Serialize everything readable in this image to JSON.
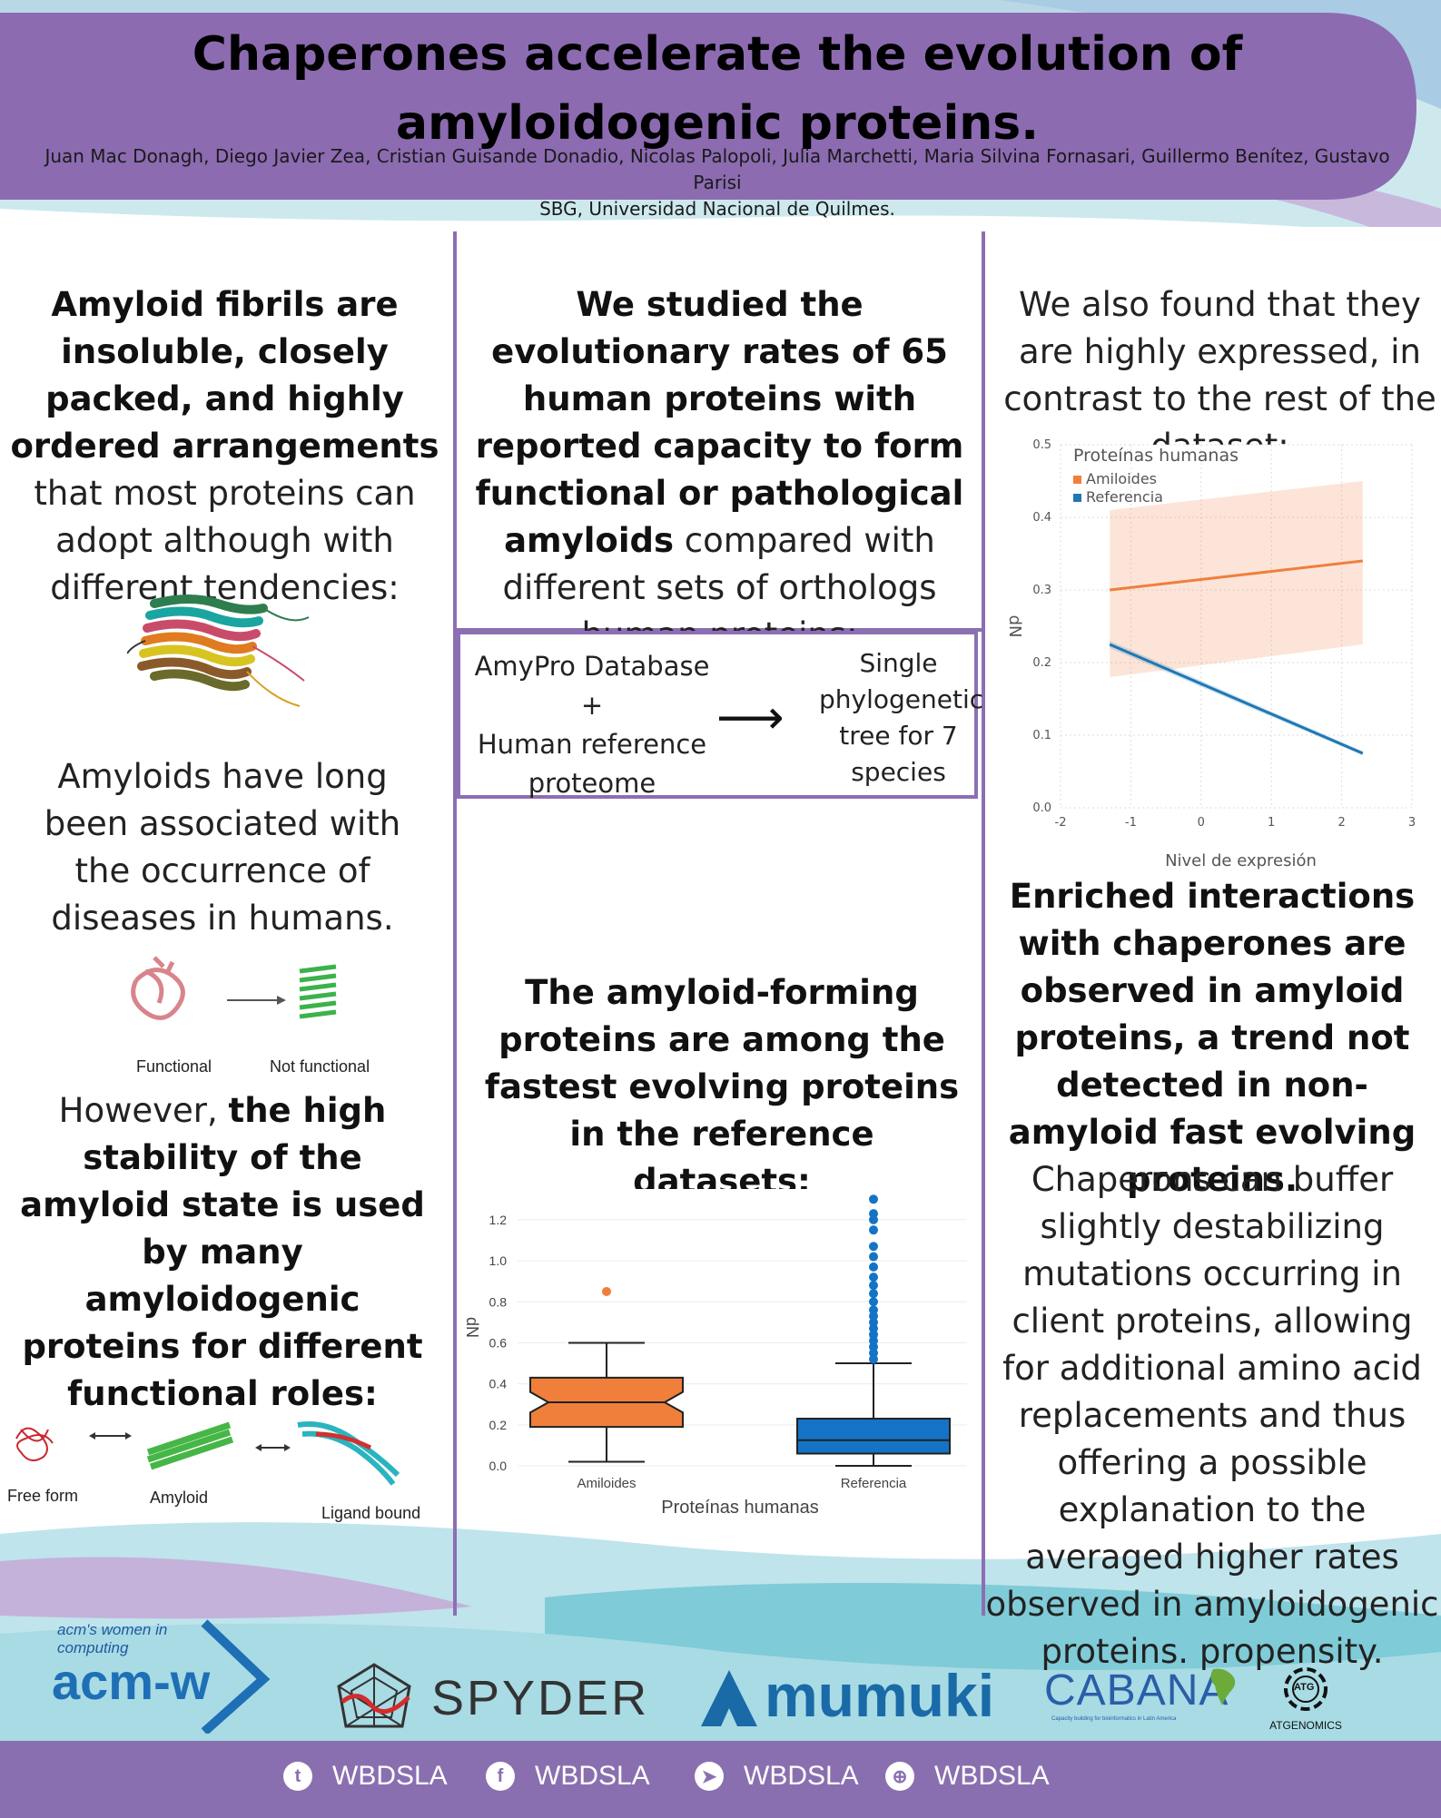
{
  "header": {
    "title": "Chaperones accelerate the evolution of amyloidogenic proteins.",
    "authors": "Juan Mac Donagh, Diego Javier Zea, Cristian Guisande Donadio, Nicolas Palopoli, Julia Marchetti, Maria Silvina Fornasari, Guillermo Benítez, Gustavo Parisi",
    "affiliation": "SBG, Universidad Nacional de Quilmes."
  },
  "left": {
    "p1_bold_a": "Amyloid fibrils are insoluble, closely packed, and highly ordered arrangements",
    "p1_rest": " that most proteins can adopt although with different tendencies:",
    "p2": "Amyloids have long been associated with the occurrence of diseases in humans.",
    "fig2_cap_functional": "Functional",
    "fig2_cap_notfunctional": "Not functional",
    "p3_pre": "However, ",
    "p3_bold": "the high stability of the amyloid state is used by many amyloidogenic proteins for different functional roles:",
    "fig3_cap_free": "Free form",
    "fig3_cap_amyloid": "Amyloid",
    "fig3_cap_ligand": "Ligand bound"
  },
  "middle": {
    "p1_bold": "We studied the evolutionary rates of 65 human proteins with reported capacity to form functional or pathological amyloids",
    "p1_rest": " compared with different sets of orthologs human proteins:",
    "flow_left_1": "AmyPro Database",
    "flow_left_plus": "+",
    "flow_left_2": "Human reference proteome",
    "flow_arrow": "⟶",
    "flow_right": "Single phylogenetic tree for 7 species",
    "p2_bold": "The amyloid-forming proteins are among the fastest evolving proteins in the reference datasets:"
  },
  "right": {
    "p1": "We also found that they are highly expressed, in contrast to the rest of the dataset:",
    "p2_bold": "Enriched interactions with chaperones are observed in amyloid proteins, a trend not detected in non-amyloid fast evolving proteins.",
    "p3": "Chaperons can buffer slightly destabilizing mutations occurring in client proteins, allowing for additional amino acid replacements and thus offering a possible explanation to the averaged higher rates observed in amyloidogenic proteins. propensity."
  },
  "chart_data": [
    {
      "type": "line",
      "title": "Proteínas humanas",
      "xlabel": "Nivel de expresión",
      "ylabel": "dN",
      "xlim": [
        -2,
        3
      ],
      "ylim": [
        0,
        0.5
      ],
      "xticks": [
        "-2",
        "-1",
        "0",
        "1",
        "2",
        "3"
      ],
      "yticks": [
        "0.0",
        "0.1",
        "0.2",
        "0.3",
        "0.4",
        "0.5"
      ],
      "grid": true,
      "legend": "top-left",
      "series": [
        {
          "name": "Amiloides",
          "color": "#f07f3c",
          "x": [
            -1.3,
            2.3
          ],
          "y": [
            0.3,
            0.34
          ],
          "ci_upper": [
            0.41,
            0.45
          ],
          "ci_lower": [
            0.18,
            0.225
          ]
        },
        {
          "name": "Referencia",
          "color": "#1f77b4",
          "x": [
            -1.3,
            2.3
          ],
          "y": [
            0.225,
            0.075
          ],
          "ci_upper": [
            0.23,
            0.078
          ],
          "ci_lower": [
            0.22,
            0.072
          ]
        }
      ]
    },
    {
      "type": "box",
      "xlabel": "Proteínas humanas",
      "ylabel": "dN",
      "ylim": [
        0,
        1.35
      ],
      "yticks": [
        "0.0",
        "0.2",
        "0.4",
        "0.6",
        "0.8",
        "1.0",
        "1.2"
      ],
      "categories": [
        "Amiloides",
        "Referencia"
      ],
      "boxes": [
        {
          "name": "Amiloides",
          "color": "#ef7f3b",
          "min": 0.02,
          "q1": 0.19,
          "median": 0.31,
          "q3": 0.43,
          "max": 0.6,
          "outliers": [
            0.85
          ]
        },
        {
          "name": "Referencia",
          "color": "#1473c4",
          "min": 0.0,
          "q1": 0.06,
          "median": 0.125,
          "q3": 0.23,
          "max": 0.5,
          "outliers": [
            0.52,
            0.55,
            0.58,
            0.61,
            0.64,
            0.67,
            0.7,
            0.73,
            0.76,
            0.8,
            0.84,
            0.88,
            0.92,
            0.97,
            1.02,
            1.07,
            1.15,
            1.2,
            1.23,
            1.3
          ]
        }
      ]
    }
  ],
  "footer": {
    "social": [
      {
        "icon": "twitter-icon",
        "glyph": "t",
        "label": "WBDSLA"
      },
      {
        "icon": "facebook-icon",
        "glyph": "f",
        "label": "WBDSLA"
      },
      {
        "icon": "telegram-icon",
        "glyph": "➤",
        "label": "WBDSLA"
      },
      {
        "icon": "web-icon",
        "glyph": "⊕",
        "label": "WBDSLA"
      }
    ],
    "logos": {
      "acmw_small": "acm's women in computing",
      "acmw_big": "acm-w",
      "spyder": "SPYDER",
      "mumuki": "mumuki",
      "cabana": "CABANA",
      "cabana_sub": "Capacity building for bioinformatics in Latin America",
      "atg_badge": "ATG",
      "atg_text": "ATGENOMICS"
    }
  }
}
